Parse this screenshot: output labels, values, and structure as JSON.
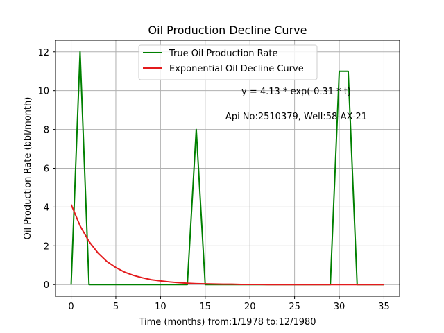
{
  "chart_data": {
    "type": "line",
    "title": "Oil Production Decline Curve",
    "xlabel": "Time (months) from:1/1978 to:12/1980",
    "ylabel": "Oil Production Rate (bbl/month)",
    "xlim": [
      -1.75,
      36.75
    ],
    "ylim": [
      -0.6,
      12.6
    ],
    "xticks": [
      0,
      5,
      10,
      15,
      20,
      25,
      30,
      35
    ],
    "yticks": [
      0,
      2,
      4,
      6,
      8,
      10,
      12
    ],
    "grid": true,
    "legend_position": "top-center",
    "annotations": [
      "y = 4.13 * exp(-0.31 * t)",
      "Api No:2510379, Well:58-AX-21"
    ],
    "series": [
      {
        "name": "True Oil Production Rate",
        "color": "#008000",
        "x": [
          0,
          1,
          2,
          3,
          4,
          5,
          6,
          7,
          8,
          9,
          10,
          11,
          12,
          13,
          14,
          15,
          16,
          17,
          18,
          19,
          20,
          21,
          22,
          23,
          24,
          25,
          26,
          27,
          28,
          29,
          30,
          31,
          32,
          33,
          34,
          35
        ],
        "y": [
          0,
          12,
          0,
          0,
          0,
          0,
          0,
          0,
          0,
          0,
          0,
          0,
          0,
          0,
          8,
          0,
          0,
          0,
          0,
          0,
          0,
          0,
          0,
          0,
          0,
          0,
          0,
          0,
          0,
          0,
          11,
          11,
          0,
          0,
          0,
          0
        ]
      },
      {
        "name": "Exponential Oil Decline Curve",
        "color": "#e31a1c",
        "model": {
          "a": 4.13,
          "b": 0.31
        },
        "x": [
          0,
          1,
          2,
          3,
          4,
          5,
          6,
          7,
          8,
          9,
          10,
          11,
          12,
          13,
          14,
          15,
          16,
          17,
          18,
          19,
          20,
          21,
          22,
          23,
          24,
          25,
          26,
          27,
          28,
          29,
          30,
          31,
          32,
          33,
          34,
          35
        ],
        "y": [
          4.13,
          3.03,
          2.22,
          1.63,
          1.19,
          0.88,
          0.64,
          0.47,
          0.35,
          0.25,
          0.19,
          0.14,
          0.1,
          0.07,
          0.05,
          0.04,
          0.03,
          0.02,
          0.02,
          0.01,
          0.01,
          0.01,
          0.0,
          0.0,
          0.0,
          0.0,
          0.0,
          0.0,
          0.0,
          0.0,
          0.0,
          0.0,
          0.0,
          0.0,
          0.0,
          0.0
        ]
      }
    ]
  }
}
